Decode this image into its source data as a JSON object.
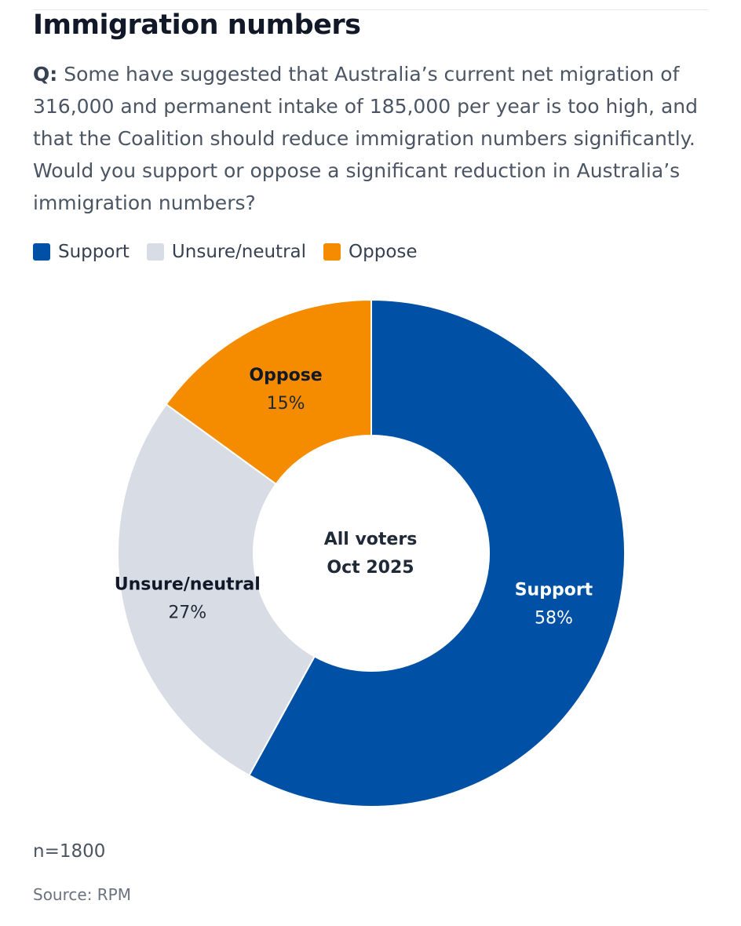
{
  "header": {
    "title": "Immigration numbers",
    "question_label": "Q:",
    "question_text": " Some have suggested that Australia’s current net migration of 316,000 and permanent intake of 185,000 per year is too high, and that the Coalition should reduce immigration numbers significantly. Would you support or oppose a significant reduction in Australia’s immigration numbers?"
  },
  "chart_data": {
    "type": "pie",
    "variant": "donut",
    "center_text": [
      "All voters",
      "Oct 2025"
    ],
    "legend": [
      {
        "name": "Support",
        "color": "#0050a5"
      },
      {
        "name": "Unsure/neutral",
        "color": "#d8dce5"
      },
      {
        "name": "Oppose",
        "color": "#f58c00"
      }
    ],
    "slices": [
      {
        "name": "Support",
        "value": 58,
        "label": "58%",
        "color": "#0050a5",
        "label_color": "#ffffff",
        "value_color": "#ffffff"
      },
      {
        "name": "Unsure/neutral",
        "value": 27,
        "label": "27%",
        "color": "#d8dce5",
        "label_color": "#111827",
        "value_color": "#1f2937"
      },
      {
        "name": "Oppose",
        "value": 15,
        "label": "15%",
        "color": "#f58c00",
        "label_color": "#111827",
        "value_color": "#1f2937"
      }
    ]
  },
  "footer": {
    "note": "n=1800",
    "source": "Source: RPM"
  }
}
